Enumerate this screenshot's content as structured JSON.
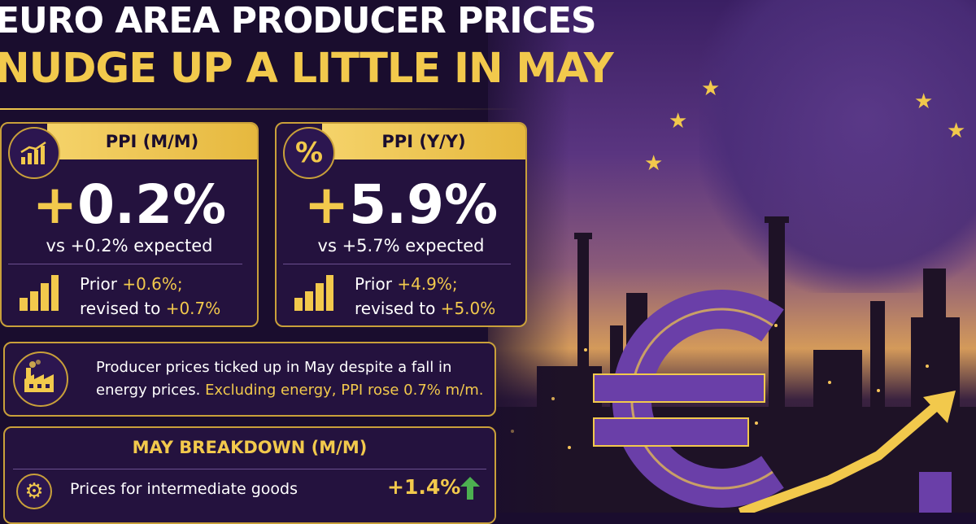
{
  "headline": {
    "line1": "EURO AREA PRODUCER PRICES",
    "line2": "NUDGE UP A LITTLE IN MAY"
  },
  "cards": [
    {
      "icon": "chart-up-icon",
      "title": "PPI (M/M)",
      "value_sign": "+",
      "value": "0.2%",
      "expected": "vs +0.2% expected",
      "prior_label": "Prior ",
      "prior_value": "+0.6%;",
      "revised_label": "revised to ",
      "revised_value": "+0.7%"
    },
    {
      "icon": "percent-icon",
      "badge_text": "%",
      "title": "PPI (Y/Y)",
      "value_sign": "+",
      "value": "5.9%",
      "expected": "vs +5.7% expected",
      "prior_label": "Prior ",
      "prior_value": "+4.9%;",
      "revised_label": "revised to ",
      "revised_value": "+5.0%"
    }
  ],
  "note": {
    "icon": "factory-icon",
    "text": "Producer prices ticked up in May despite a fall in energy prices. ",
    "highlight": "Excluding energy, PPI rose 0.7% m/m."
  },
  "breakdown": {
    "title": "MAY BREAKDOWN (M/M)",
    "items": [
      {
        "icon": "gear-icon",
        "label": "Prices for intermediate goods",
        "value": "+1.4%",
        "direction": "up-arrow-icon"
      }
    ]
  },
  "colors": {
    "background": "#1a0d2e",
    "panel": "#24123e",
    "gold": "#f2c94c",
    "up_green": "#4caf50",
    "euro_purple": "#6a3fa8"
  }
}
